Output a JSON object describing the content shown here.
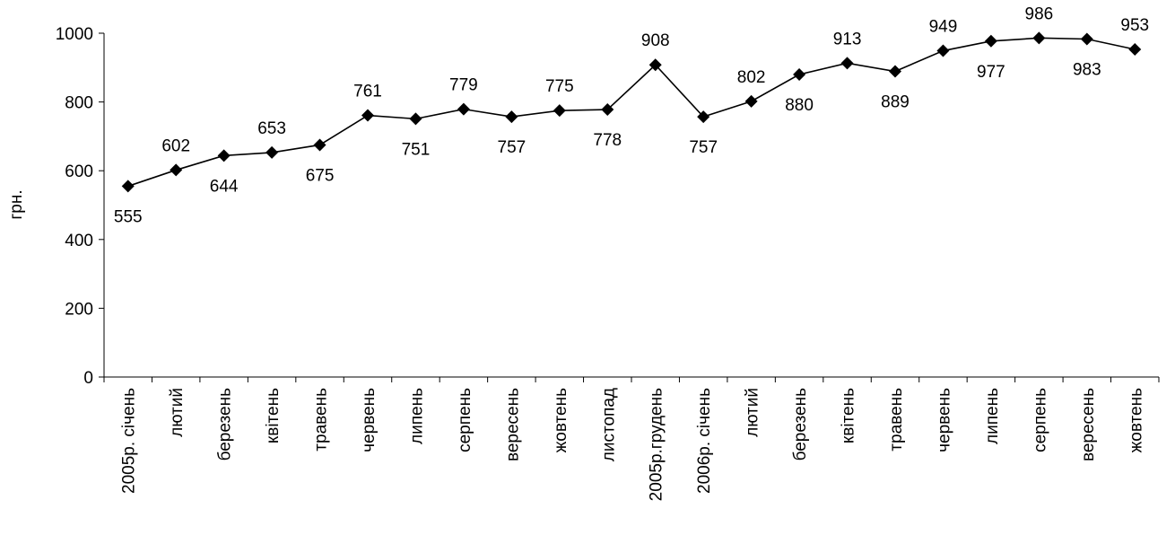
{
  "chart_data": {
    "type": "line",
    "title": "",
    "xlabel": "",
    "ylabel": "грн.",
    "ylim": [
      0,
      1000
    ],
    "yticks": [
      0,
      200,
      400,
      600,
      800,
      1000
    ],
    "categories": [
      "2005р. січень",
      "лютий",
      "березень",
      "квітень",
      "травень",
      "червень",
      "липень",
      "серпень",
      "вересень",
      "жовтень",
      "листопад",
      "2005р.грудень",
      "2006р. січень",
      "лютий",
      "березень",
      "квітень",
      "травень",
      "червень",
      "липень",
      "серпень",
      "вересень",
      "жовтень"
    ],
    "series": [
      {
        "values": [
          555,
          602,
          644,
          653,
          675,
          761,
          751,
          779,
          757,
          775,
          778,
          908,
          757,
          802,
          880,
          913,
          889,
          949,
          977,
          986,
          983,
          953
        ],
        "label_positions": [
          "below",
          "above",
          "below",
          "above",
          "below",
          "above",
          "below",
          "above",
          "below",
          "above",
          "below",
          "above",
          "below",
          "above",
          "below",
          "above",
          "below",
          "above",
          "below",
          "above",
          "below",
          "above"
        ]
      }
    ],
    "grid": false,
    "legend": "none",
    "marker": "diamond",
    "line_color": "#000000"
  }
}
